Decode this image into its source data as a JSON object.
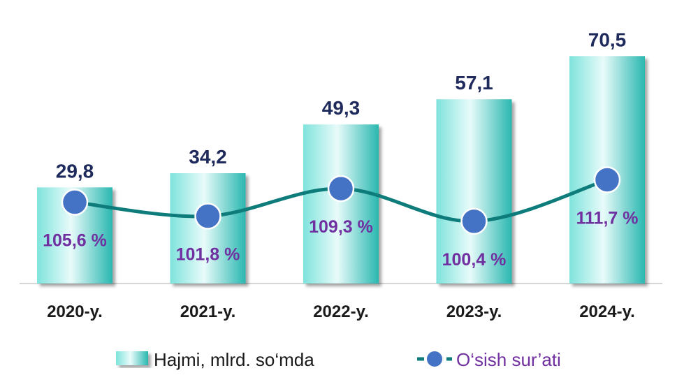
{
  "chart_data": {
    "type": "bar",
    "categories": [
      "2020-y.",
      "2021-y.",
      "2022-y.",
      "2023-y.",
      "2024-y."
    ],
    "series": [
      {
        "name": "Hajmi, mlrd. so‘mda",
        "type": "bar",
        "values": [
          29.8,
          34.2,
          49.3,
          57.1,
          70.5
        ],
        "labels": [
          "29,8",
          "34,2",
          "49,3",
          "57,1",
          "70,5"
        ],
        "color": "#4fd1c5"
      },
      {
        "name": "O‘sish sur’ati",
        "type": "line",
        "values": [
          105.6,
          101.8,
          109.3,
          100.4,
          111.7
        ],
        "labels": [
          "105,6 %",
          "101,8 %",
          "109,3 %",
          "100,4 %",
          "111,7 %"
        ],
        "line_color": "#0e7c7b",
        "marker_color": "#4472c4"
      }
    ],
    "legend_position": "bottom",
    "grid": false,
    "colors": {
      "bar_label": "#1f2a5c",
      "pct_label": "#7030a0",
      "legend_line_text": "#7030a0",
      "legend_bar_text": "#1a1a1a"
    }
  }
}
